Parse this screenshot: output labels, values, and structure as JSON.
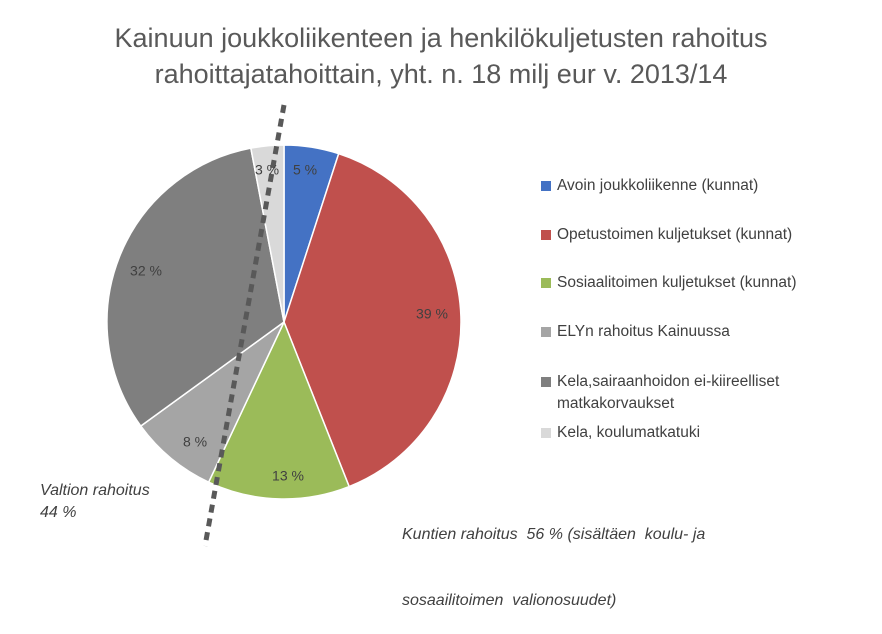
{
  "chart_data": {
    "type": "pie",
    "title": "Kainuun joukkoliikenteen ja henkilökuljetusten rahoitus rahoittajatahoittain, yht. n. 18 milj eur v. 2013/14",
    "title_lines": [
      "Kainuun joukkoliikenteen ja henkilökuljetusten rahoitus",
      "rahoittajatahoittain, yht. n. 18 milj eur v. 2013/14"
    ],
    "categories": [
      "Avoin joukkoliikenne (kunnat)",
      "Opetustoimen kuljetukset (kunnat)",
      "Sosiaalitoimen kuljetukset (kunnat)",
      "ELYn rahoitus Kainuussa",
      "Kela,sairaanhoidon ei-kiireelliset matkakorvaukset",
      "Kela, koulumatkatuki"
    ],
    "values": [
      5,
      39,
      13,
      8,
      32,
      3
    ],
    "data_labels": [
      "5 %",
      "39 %",
      "13 %",
      "8 %",
      "32 %",
      "3 %"
    ],
    "colors": [
      "#4472c4",
      "#c0504d",
      "#9bbb59",
      "#a5a5a5",
      "#7f7f7f",
      "#d9d9d9"
    ],
    "legend_position": "right",
    "legend": [
      {
        "lines": [
          "Avoin joukkoliikenne (kunnat)"
        ],
        "color": "#4472c4"
      },
      {
        "lines": [
          "Opetustoimen kuljetukset (kunnat)"
        ],
        "color": "#c0504d"
      },
      {
        "lines": [
          "Sosiaalitoimen kuljetukset (kunnat)"
        ],
        "color": "#9bbb59"
      },
      {
        "lines": [
          "ELYn rahoitus Kainuussa"
        ],
        "color": "#a5a5a5"
      },
      {
        "lines": [
          "Kela,sairaanhoidon ei-kiireelliset",
          "matkakorvaukset"
        ],
        "color": "#7f7f7f"
      },
      {
        "lines": [
          "Kela, koulumatkatuki"
        ],
        "color": "#d9d9d9"
      }
    ],
    "annotations": {
      "left": [
        "Valtion rahoitus",
        "44 %"
      ],
      "right": [
        "Kuntien rahoitus  56 % (sisältäen  koulu- ja",
        "sosaailitoimen  valionosuudet)"
      ]
    }
  }
}
